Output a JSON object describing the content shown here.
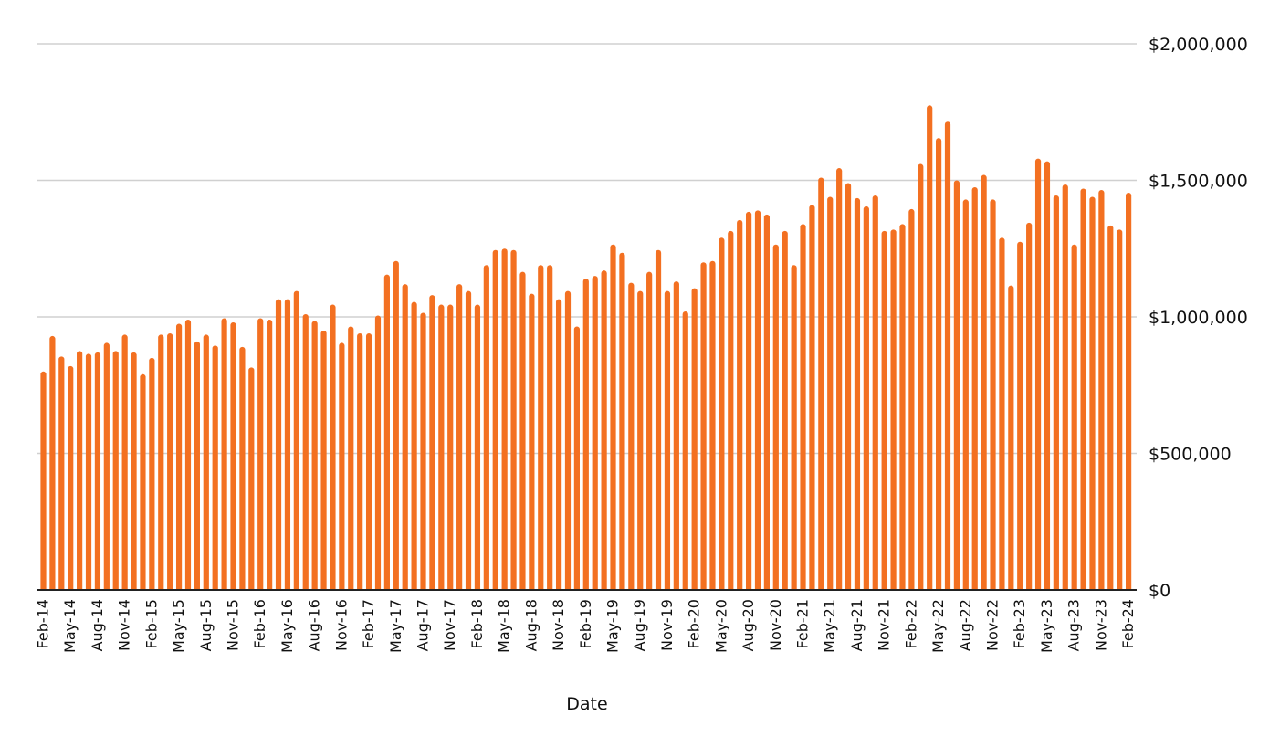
{
  "chart_data": {
    "type": "bar",
    "title": "",
    "xlabel": "Date",
    "ylabel": "",
    "ylim": [
      0,
      2000000
    ],
    "yticks": [
      0,
      500000,
      1000000,
      1500000,
      2000000
    ],
    "ytick_labels": [
      "$0",
      "$500,000",
      "$1,000,000",
      "$1,500,000",
      "$2,000,000"
    ],
    "y_axis_position": "right",
    "grid": true,
    "bar_color": "#f37021",
    "x_tick_labels": [
      "Feb-14",
      "May-14",
      "Aug-14",
      "Nov-14",
      "Feb-15",
      "May-15",
      "Aug-15",
      "Nov-15",
      "Feb-16",
      "May-16",
      "Aug-16",
      "Nov-16",
      "Feb-17",
      "May-17",
      "Aug-17",
      "Nov-17",
      "Feb-18",
      "May-18",
      "Aug-18",
      "Nov-18",
      "Feb-19",
      "May-19",
      "Aug-19",
      "Nov-19",
      "Feb-20",
      "May-20",
      "Aug-20",
      "Nov-20",
      "Feb-21",
      "May-21",
      "Aug-21",
      "Nov-21",
      "Feb-22",
      "May-22",
      "Aug-22",
      "Nov-22",
      "Feb-23",
      "May-23",
      "Aug-23",
      "Nov-23",
      "Feb-24"
    ],
    "x_tick_every": 3,
    "categories": [
      "Feb-14",
      "Mar-14",
      "Apr-14",
      "May-14",
      "Jun-14",
      "Jul-14",
      "Aug-14",
      "Sep-14",
      "Oct-14",
      "Nov-14",
      "Dec-14",
      "Jan-15",
      "Feb-15",
      "Mar-15",
      "Apr-15",
      "May-15",
      "Jun-15",
      "Jul-15",
      "Aug-15",
      "Sep-15",
      "Oct-15",
      "Nov-15",
      "Dec-15",
      "Jan-16",
      "Feb-16",
      "Mar-16",
      "Apr-16",
      "May-16",
      "Jun-16",
      "Jul-16",
      "Aug-16",
      "Sep-16",
      "Oct-16",
      "Nov-16",
      "Dec-16",
      "Jan-17",
      "Feb-17",
      "Mar-17",
      "Apr-17",
      "May-17",
      "Jun-17",
      "Jul-17",
      "Aug-17",
      "Sep-17",
      "Oct-17",
      "Nov-17",
      "Dec-17",
      "Jan-18",
      "Feb-18",
      "Mar-18",
      "Apr-18",
      "May-18",
      "Jun-18",
      "Jul-18",
      "Aug-18",
      "Sep-18",
      "Oct-18",
      "Nov-18",
      "Dec-18",
      "Jan-19",
      "Feb-19",
      "Mar-19",
      "Apr-19",
      "May-19",
      "Jun-19",
      "Jul-19",
      "Aug-19",
      "Sep-19",
      "Oct-19",
      "Nov-19",
      "Dec-19",
      "Jan-20",
      "Feb-20",
      "Mar-20",
      "Apr-20",
      "May-20",
      "Jun-20",
      "Jul-20",
      "Aug-20",
      "Sep-20",
      "Oct-20",
      "Nov-20",
      "Dec-20",
      "Jan-21",
      "Feb-21",
      "Mar-21",
      "Apr-21",
      "May-21",
      "Jun-21",
      "Jul-21",
      "Aug-21",
      "Sep-21",
      "Oct-21",
      "Nov-21",
      "Dec-21",
      "Jan-22",
      "Feb-22",
      "Mar-22",
      "Apr-22",
      "May-22",
      "Jun-22",
      "Jul-22",
      "Aug-22",
      "Sep-22",
      "Oct-22",
      "Nov-22",
      "Dec-22",
      "Jan-23",
      "Feb-23",
      "Mar-23",
      "Apr-23",
      "May-23",
      "Jun-23",
      "Jul-23",
      "Aug-23",
      "Sep-23",
      "Oct-23",
      "Nov-23",
      "Dec-23",
      "Jan-24",
      "Feb-24"
    ],
    "values": [
      800000,
      930000,
      855000,
      820000,
      875000,
      865000,
      870000,
      905000,
      875000,
      935000,
      870000,
      790000,
      850000,
      935000,
      940000,
      975000,
      990000,
      910000,
      935000,
      895000,
      995000,
      980000,
      890000,
      815000,
      995000,
      990000,
      1065000,
      1065000,
      1095000,
      1010000,
      985000,
      950000,
      1045000,
      905000,
      965000,
      940000,
      940000,
      1005000,
      1155000,
      1205000,
      1120000,
      1055000,
      1015000,
      1080000,
      1045000,
      1045000,
      1120000,
      1095000,
      1045000,
      1190000,
      1245000,
      1250000,
      1245000,
      1165000,
      1085000,
      1190000,
      1190000,
      1065000,
      1095000,
      965000,
      1140000,
      1150000,
      1170000,
      1265000,
      1235000,
      1125000,
      1095000,
      1165000,
      1245000,
      1095000,
      1130000,
      1020000,
      1105000,
      1200000,
      1205000,
      1290000,
      1315000,
      1355000,
      1385000,
      1390000,
      1375000,
      1265000,
      1315000,
      1190000,
      1340000,
      1410000,
      1510000,
      1440000,
      1545000,
      1490000,
      1435000,
      1405000,
      1445000,
      1315000,
      1320000,
      1340000,
      1395000,
      1560000,
      1775000,
      1655000,
      1715000,
      1500000,
      1430000,
      1475000,
      1520000,
      1430000,
      1290000,
      1115000,
      1275000,
      1345000,
      1580000,
      1570000,
      1445000,
      1485000,
      1265000,
      1470000,
      1440000,
      1465000,
      1335000,
      1320000,
      1455000
    ]
  }
}
